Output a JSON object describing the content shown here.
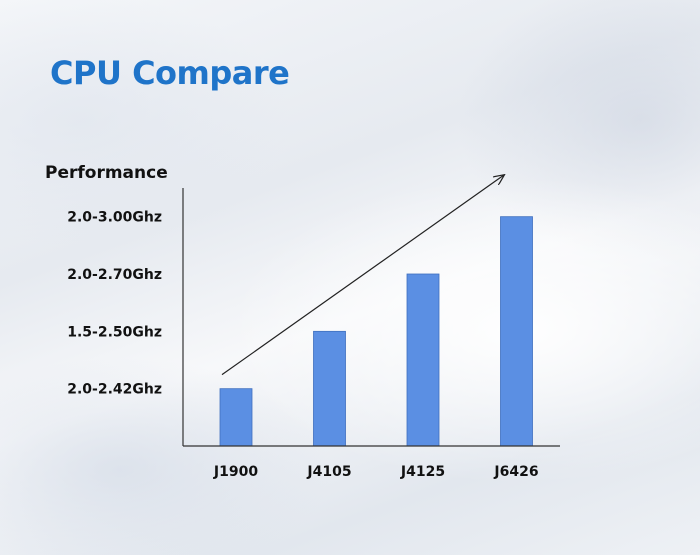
{
  "page": {
    "title": "CPU Compare"
  },
  "colors": {
    "title": "#1f74c9",
    "bar_fill": "#5b8fe3",
    "bar_stroke": "#3f6fbf",
    "axis": "#333333",
    "arrow": "#222222"
  },
  "chart_data": {
    "type": "bar",
    "title": "",
    "ylabel": "Performance",
    "xlabel": "",
    "categories": [
      "J1900",
      "J4105",
      "J4125",
      "J6426"
    ],
    "values": [
      1,
      2,
      3,
      4
    ],
    "ylim": [
      0,
      4.5
    ],
    "ytick_values": [
      1,
      2,
      3,
      4
    ],
    "ytick_labels": [
      "2.0-2.42Ghz",
      "1.5-2.50Ghz",
      "2.0-2.70Ghz",
      "2.0-3.00Ghz"
    ],
    "grid": false,
    "legend": "none",
    "annotation": "upward trend arrow"
  }
}
